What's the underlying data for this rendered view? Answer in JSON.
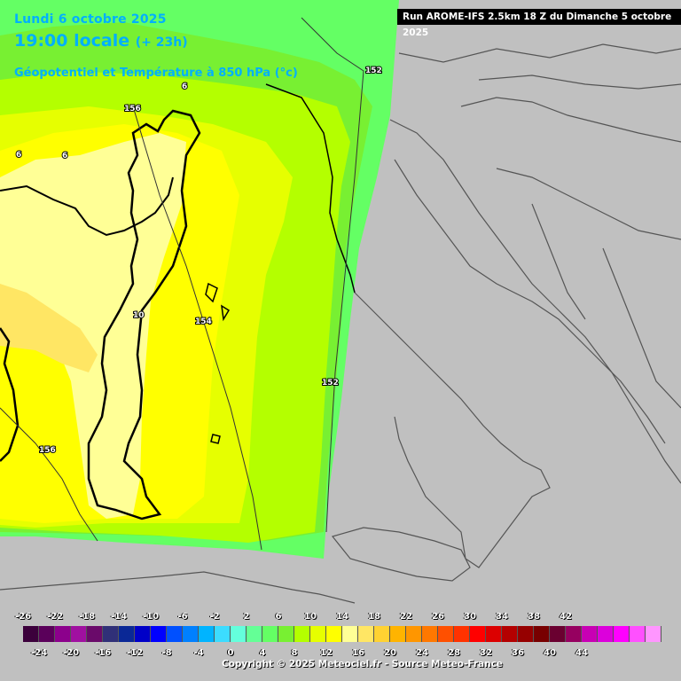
{
  "header": {
    "date": "Lundi 6 octobre 2025",
    "time": "19:00 locale",
    "lead": "(+ 23h)",
    "parameter": "Géopotentiel et Température à 850 hPa (°c)"
  },
  "run_info": "Run AROME-IFS 2.5km 18 Z du Dimanche 5 octobre 2025",
  "copyright": "Copyright © 2025 Meteociel.fr - Source Meteo-France",
  "contour_labels": [
    {
      "text": "152",
      "kind": "geopotential"
    },
    {
      "text": "156",
      "kind": "geopotential"
    },
    {
      "text": "154",
      "kind": "geopotential"
    },
    {
      "text": "152",
      "kind": "geopotential"
    },
    {
      "text": "156",
      "kind": "geopotential"
    },
    {
      "text": "6",
      "kind": "temperature"
    },
    {
      "text": "6",
      "kind": "temperature"
    },
    {
      "text": "6",
      "kind": "temperature"
    },
    {
      "text": "10",
      "kind": "temperature"
    }
  ],
  "legend": {
    "top_ticks": [
      "-26",
      "-22",
      "-18",
      "-14",
      "-10",
      "-6",
      "-2",
      "2",
      "6",
      "10",
      "14",
      "18",
      "22",
      "26",
      "30",
      "34",
      "38",
      "42"
    ],
    "bottom_ticks": [
      "-24",
      "-20",
      "-16",
      "-12",
      "-8",
      "-4",
      "0",
      "4",
      "8",
      "12",
      "16",
      "20",
      "24",
      "28",
      "32",
      "36",
      "40",
      "44"
    ],
    "colors": [
      "#3c003c",
      "#5a005a",
      "#8c008c",
      "#a010a0",
      "#6a0a6a",
      "#303078",
      "#0a2896",
      "#0000c8",
      "#0000ff",
      "#0050ff",
      "#0080ff",
      "#00b4ff",
      "#3cdcff",
      "#64ffdc",
      "#64ff96",
      "#64ff64",
      "#78f032",
      "#b4ff00",
      "#e6ff00",
      "#ffff00",
      "#ffff96",
      "#ffe664",
      "#ffd232",
      "#ffb400",
      "#ff9600",
      "#ff7800",
      "#ff5000",
      "#ff3200",
      "#ff0000",
      "#dc0000",
      "#b40000",
      "#960000",
      "#780000",
      "#6a0030",
      "#960060",
      "#c800b4",
      "#dc00dc",
      "#ff00ff",
      "#ff50ff",
      "#ff96ff"
    ]
  }
}
